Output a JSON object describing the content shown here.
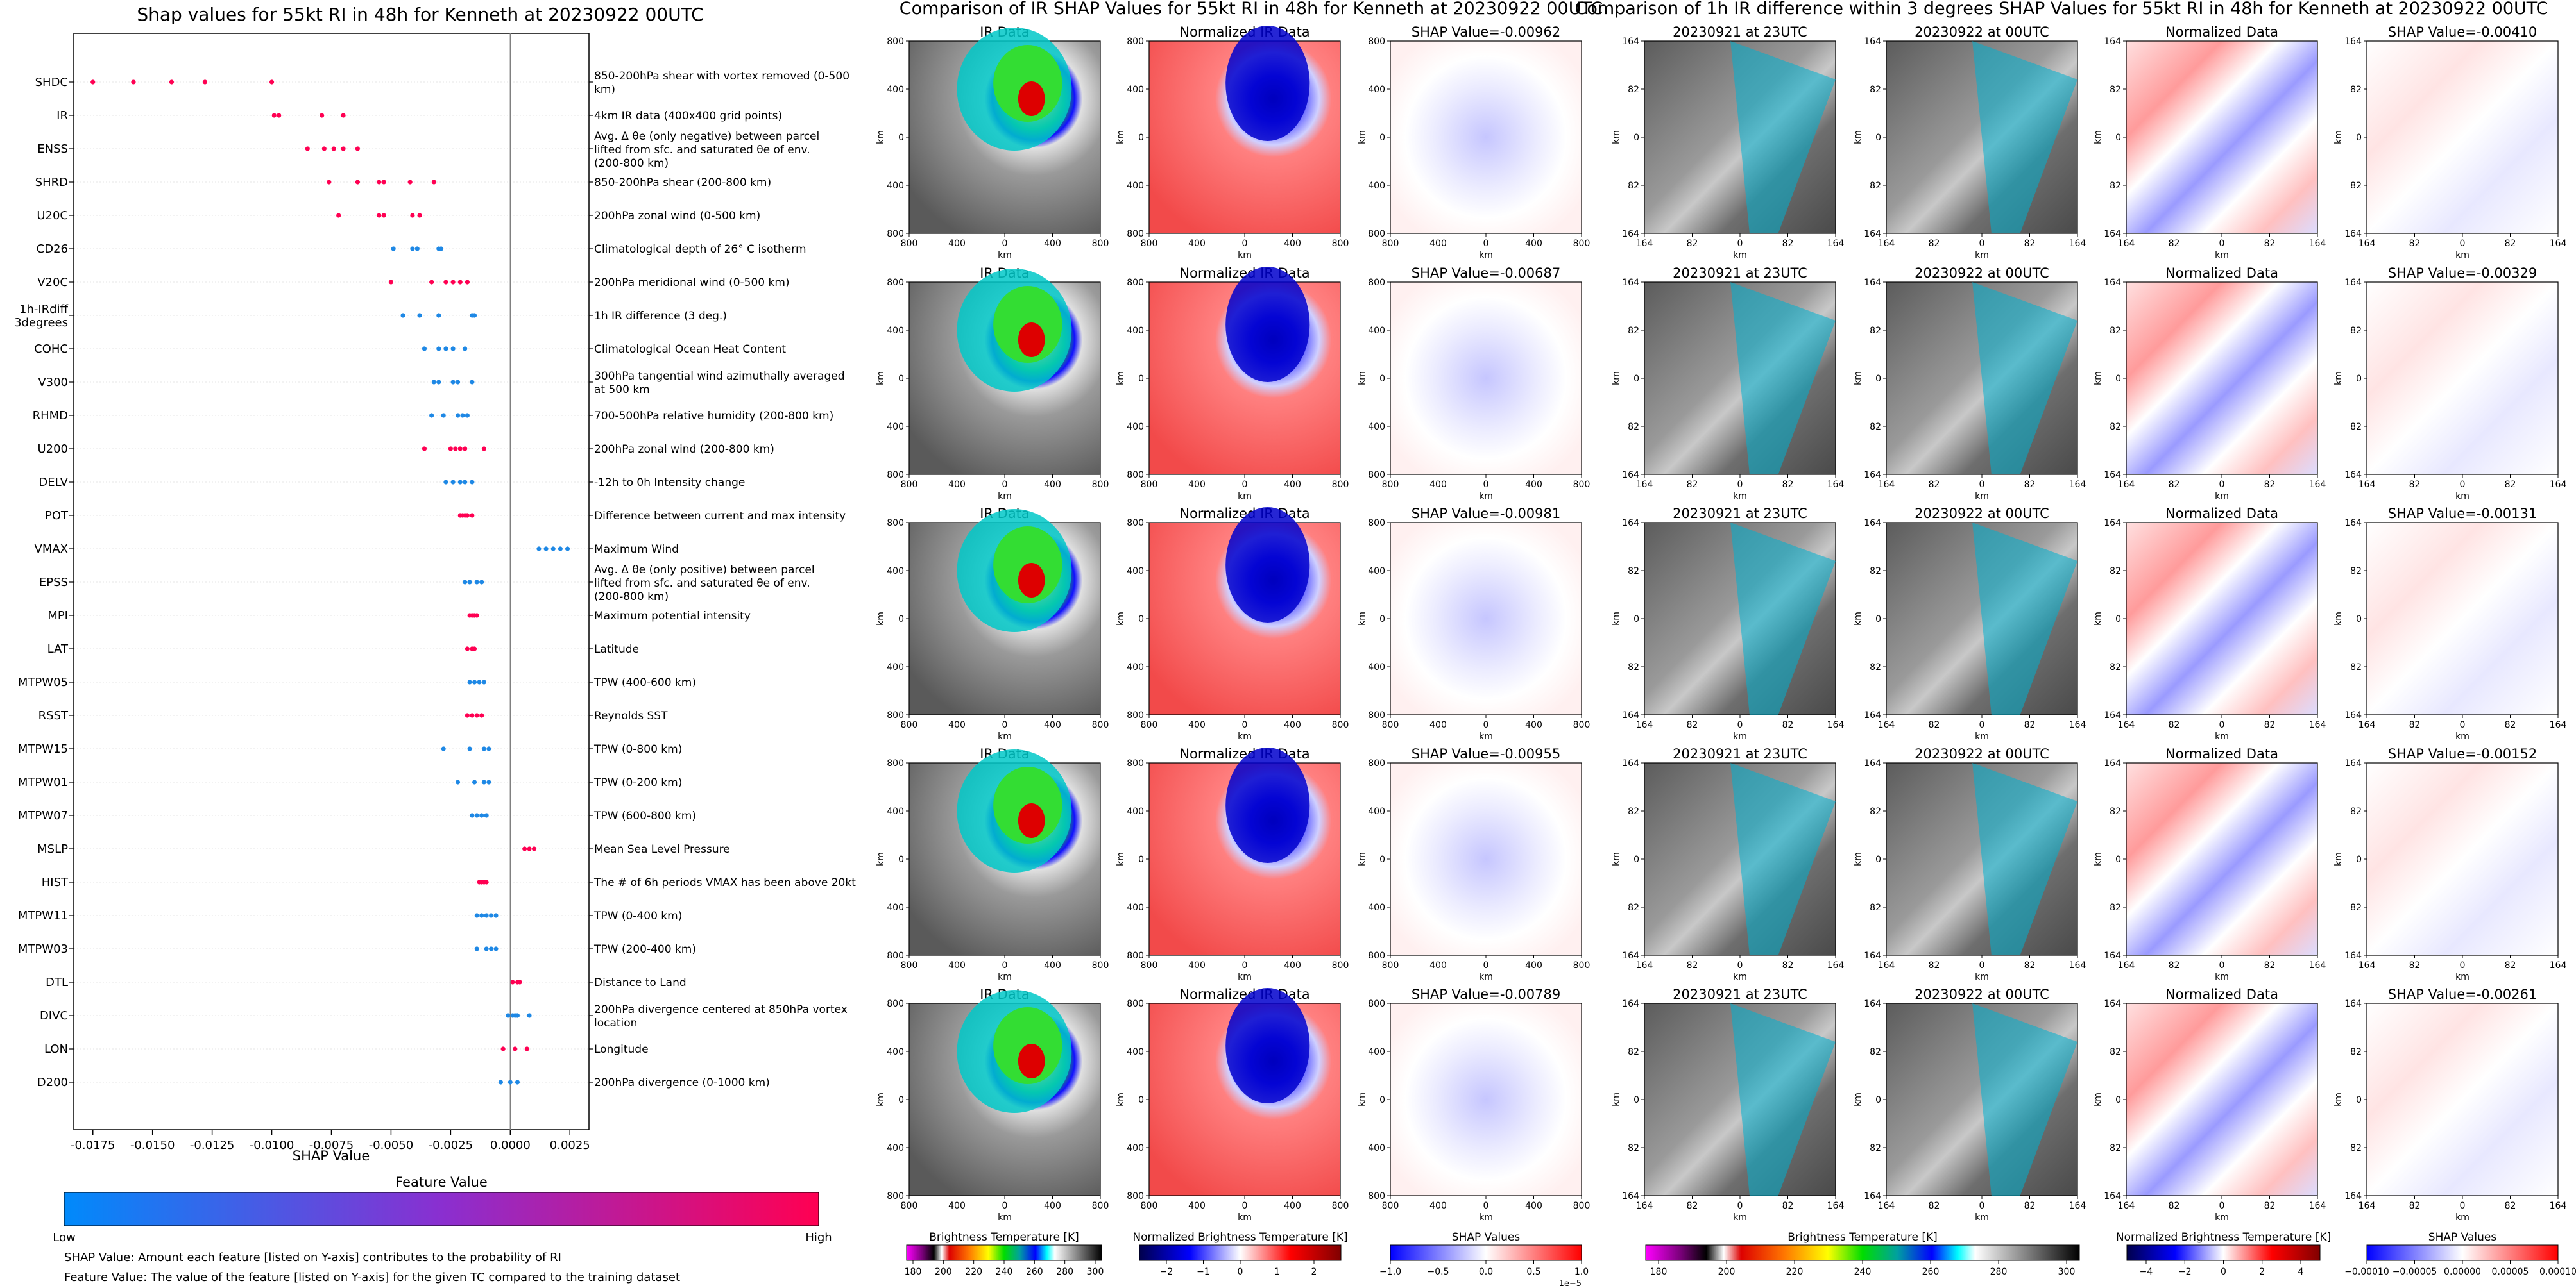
{
  "colors": {
    "low": "#1e88e5",
    "high": "#ff0052",
    "axis": "#000000",
    "zero_line": "#808080"
  },
  "swarm": {
    "title": "Shap values for 55kt RI in 48h for Kenneth at 20230922 00UTC",
    "xlabel": "SHAP Value",
    "colorbar_label": "Feature Value",
    "colorbar_low": "Low",
    "colorbar_high": "High",
    "footnote1": "SHAP Value: Amount each feature [listed on Y-axis] contributes to the probability of RI",
    "footnote2": "Feature Value: The value of the feature [listed on Y-axis] for the given TC compared to the training dataset"
  },
  "chart_data": [
    {
      "type": "scatter",
      "title": "Shap values for 55kt RI in 48h for Kenneth at 20230922 00UTC",
      "xlabel": "SHAP Value",
      "xlim": [
        -0.0183,
        0.0033
      ],
      "xticks": [
        "-0.0175",
        "-0.0150",
        "-0.0125",
        "-0.0100",
        "-0.0075",
        "-0.0050",
        "-0.0025",
        "0.0000",
        "0.0025"
      ],
      "xtick_values": [
        -0.0175,
        -0.015,
        -0.0125,
        -0.01,
        -0.0075,
        -0.005,
        -0.0025,
        0,
        0.0025
      ],
      "features": [
        {
          "name": "SHDC",
          "desc": "850-200hPa shear with vortex removed (0-500 km)",
          "color": "high",
          "values": [
            -0.0175,
            -0.0158,
            -0.0142,
            -0.0128,
            -0.01
          ]
        },
        {
          "name": "IR",
          "desc": "4km IR data (400x400 grid points)",
          "color": "high",
          "values": [
            -0.0099,
            -0.0097,
            -0.0079,
            -0.007
          ]
        },
        {
          "name": "ENSS",
          "desc": "Avg. Δ θe (only negative) between parcel lifted from sfc. and saturated θe of env. (200-800 km)",
          "color": "high",
          "values": [
            -0.0085,
            -0.0078,
            -0.0074,
            -0.007,
            -0.0064
          ]
        },
        {
          "name": "SHRD",
          "desc": "850-200hPa shear (200-800 km)",
          "color": "high",
          "values": [
            -0.0076,
            -0.0064,
            -0.0055,
            -0.0053,
            -0.0042,
            -0.0032
          ]
        },
        {
          "name": "U20C",
          "desc": "200hPa zonal wind (0-500 km)",
          "color": "high",
          "values": [
            -0.0072,
            -0.0055,
            -0.0053,
            -0.0041,
            -0.0038
          ]
        },
        {
          "name": "CD26",
          "desc": "Climatological depth of 26° C isotherm",
          "color": "low",
          "values": [
            -0.0049,
            -0.0041,
            -0.0039,
            -0.003,
            -0.0029
          ]
        },
        {
          "name": "V20C",
          "desc": "200hPa meridional wind (0-500 km)",
          "color": "high",
          "values": [
            -0.005,
            -0.0033,
            -0.0027,
            -0.0024,
            -0.0021,
            -0.0018
          ]
        },
        {
          "name": "1h-IRdiff\n3degrees",
          "desc": "1h IR difference (3 deg.)",
          "color": "low",
          "values": [
            -0.0045,
            -0.0038,
            -0.003,
            -0.0016,
            -0.0015
          ]
        },
        {
          "name": "COHC",
          "desc": "Climatological Ocean Heat Content",
          "color": "low",
          "values": [
            -0.0036,
            -0.003,
            -0.0027,
            -0.0024,
            -0.0019
          ]
        },
        {
          "name": "V300",
          "desc": "300hPa tangential wind azimuthally averaged at 500 km",
          "color": "low",
          "values": [
            -0.0032,
            -0.003,
            -0.0024,
            -0.0022,
            -0.0016
          ]
        },
        {
          "name": "RHMD",
          "desc": "700-500hPa relative humidity (200-800 km)",
          "color": "low",
          "values": [
            -0.0033,
            -0.0028,
            -0.0022,
            -0.002,
            -0.0018
          ]
        },
        {
          "name": "U200",
          "desc": "200hPa zonal wind (200-800 km)",
          "color": "high",
          "values": [
            -0.0036,
            -0.0025,
            -0.0023,
            -0.0021,
            -0.0019,
            -0.0011
          ]
        },
        {
          "name": "DELV",
          "desc": "-12h to 0h Intensity change",
          "color": "low",
          "values": [
            -0.0027,
            -0.0024,
            -0.0021,
            -0.0019,
            -0.0016
          ]
        },
        {
          "name": "POT",
          "desc": "Difference between current and max intensity",
          "color": "high",
          "values": [
            -0.0021,
            -0.002,
            -0.0019,
            -0.0018,
            -0.0016
          ]
        },
        {
          "name": "VMAX",
          "desc": "Maximum Wind",
          "color": "low",
          "values": [
            0.0012,
            0.0015,
            0.0018,
            0.0021,
            0.0024
          ]
        },
        {
          "name": "EPSS",
          "desc": "Avg. Δ θe (only positive) between parcel lifted from sfc. and saturated θe of env. (200-800 km)",
          "color": "low",
          "values": [
            -0.0019,
            -0.0017,
            -0.0014,
            -0.0012
          ]
        },
        {
          "name": "MPI",
          "desc": "Maximum potential intensity",
          "color": "high",
          "values": [
            -0.0017,
            -0.0016,
            -0.0015,
            -0.0014
          ]
        },
        {
          "name": "LAT",
          "desc": "Latitude",
          "color": "high",
          "values": [
            -0.0018,
            -0.0016,
            -0.0015
          ]
        },
        {
          "name": "MTPW05",
          "desc": "TPW (400-600 km)",
          "color": "low",
          "values": [
            -0.0017,
            -0.0015,
            -0.0013,
            -0.0011
          ]
        },
        {
          "name": "RSST",
          "desc": "Reynolds SST",
          "color": "high",
          "values": [
            -0.0018,
            -0.0016,
            -0.0014,
            -0.0012
          ]
        },
        {
          "name": "MTPW15",
          "desc": "TPW (0-800 km)",
          "color": "low",
          "values": [
            -0.0028,
            -0.0017,
            -0.0011,
            -0.0009
          ]
        },
        {
          "name": "MTPW01",
          "desc": "TPW (0-200 km)",
          "color": "low",
          "values": [
            -0.0022,
            -0.0015,
            -0.0011,
            -0.0009
          ]
        },
        {
          "name": "MTPW07",
          "desc": "TPW (600-800 km)",
          "color": "low",
          "values": [
            -0.0016,
            -0.0014,
            -0.0012,
            -0.001
          ]
        },
        {
          "name": "MSLP",
          "desc": "Mean Sea Level Pressure",
          "color": "high",
          "values": [
            0.0006,
            0.0008,
            0.001
          ]
        },
        {
          "name": "HIST",
          "desc": "The # of 6h periods VMAX has been above 20kt",
          "color": "high",
          "values": [
            -0.0013,
            -0.0012,
            -0.0011,
            -0.001
          ]
        },
        {
          "name": "MTPW11",
          "desc": "TPW (0-400 km)",
          "color": "low",
          "values": [
            -0.0014,
            -0.0012,
            -0.001,
            -0.0008,
            -0.0006
          ]
        },
        {
          "name": "MTPW03",
          "desc": "TPW (200-400 km)",
          "color": "low",
          "values": [
            -0.0014,
            -0.001,
            -0.0008,
            -0.0006
          ]
        },
        {
          "name": "DTL",
          "desc": "Distance to Land",
          "color": "high",
          "values": [
            0.0001,
            0.0003,
            0.0004
          ]
        },
        {
          "name": "DIVC",
          "desc": "200hPa divergence centered at 850hPa vortex location",
          "color": "low",
          "values": [
            -0.0001,
            0.0001,
            0.0002,
            0.0003,
            0.0008
          ]
        },
        {
          "name": "LON",
          "desc": "Longitude",
          "color": "high",
          "values": [
            -0.0003,
            0.0002,
            0.0007
          ]
        },
        {
          "name": "D200",
          "desc": "200hPa divergence (0-1000 km)",
          "color": "low",
          "values": [
            -0.0004,
            0.0,
            0.0003
          ]
        }
      ]
    },
    {
      "type": "heatmap",
      "title": "Comparison of IR SHAP Values for 55kt RI in 48h for Kenneth at 20230922 00UTC",
      "panel_titles": [
        "IR Data",
        "Normalized IR Data",
        "SHAP Value"
      ],
      "shap_values": [
        "-0.00962",
        "-0.00687",
        "-0.00981",
        "-0.00955",
        "-0.00789"
      ],
      "xlabel": "km",
      "ylabel": "km",
      "ticks": [
        "800",
        "400",
        "0",
        "400",
        "800"
      ],
      "colorbars": [
        {
          "label": "Brightness Temperature [K]",
          "ticks": [
            "180",
            "200",
            "220",
            "240",
            "260",
            "280",
            "300"
          ]
        },
        {
          "label": "Normalized Brightness Temperature [K]",
          "ticks": [
            "−2",
            "−1",
            "0",
            "1",
            "2"
          ]
        },
        {
          "label": "SHAP Values",
          "ticks": [
            "−1.0",
            "−0.5",
            "0.0",
            "0.5",
            "1.0"
          ],
          "exponent": "1e−5"
        }
      ]
    },
    {
      "type": "heatmap",
      "title": "Comparison of 1h IR difference within 3 degrees SHAP Values for 55kt RI in 48h for Kenneth at 20230922 00UTC",
      "panel_titles": [
        "20230921 at 23UTC",
        "20230922 at 00UTC",
        "Normalized Data",
        "SHAP Value"
      ],
      "shap_values": [
        "-0.00410",
        "-0.00329",
        "-0.00131",
        "-0.00152",
        "-0.00261"
      ],
      "xlabel": "km",
      "ylabel": "km",
      "ticks": [
        "164",
        "82",
        "0",
        "82",
        "164"
      ],
      "colorbars": [
        {
          "label": "Brightness Temperature [K]",
          "ticks": [
            "180",
            "200",
            "220",
            "240",
            "260",
            "280",
            "300"
          ]
        },
        {
          "label": "Normalized Brightness Temperature [K]",
          "ticks": [
            "−4",
            "−2",
            "0",
            "2",
            "4"
          ]
        },
        {
          "label": "SHAP Values",
          "ticks": [
            "−0.00010",
            "−0.00005",
            "0.00000",
            "0.00005",
            "0.00010"
          ]
        }
      ]
    }
  ]
}
